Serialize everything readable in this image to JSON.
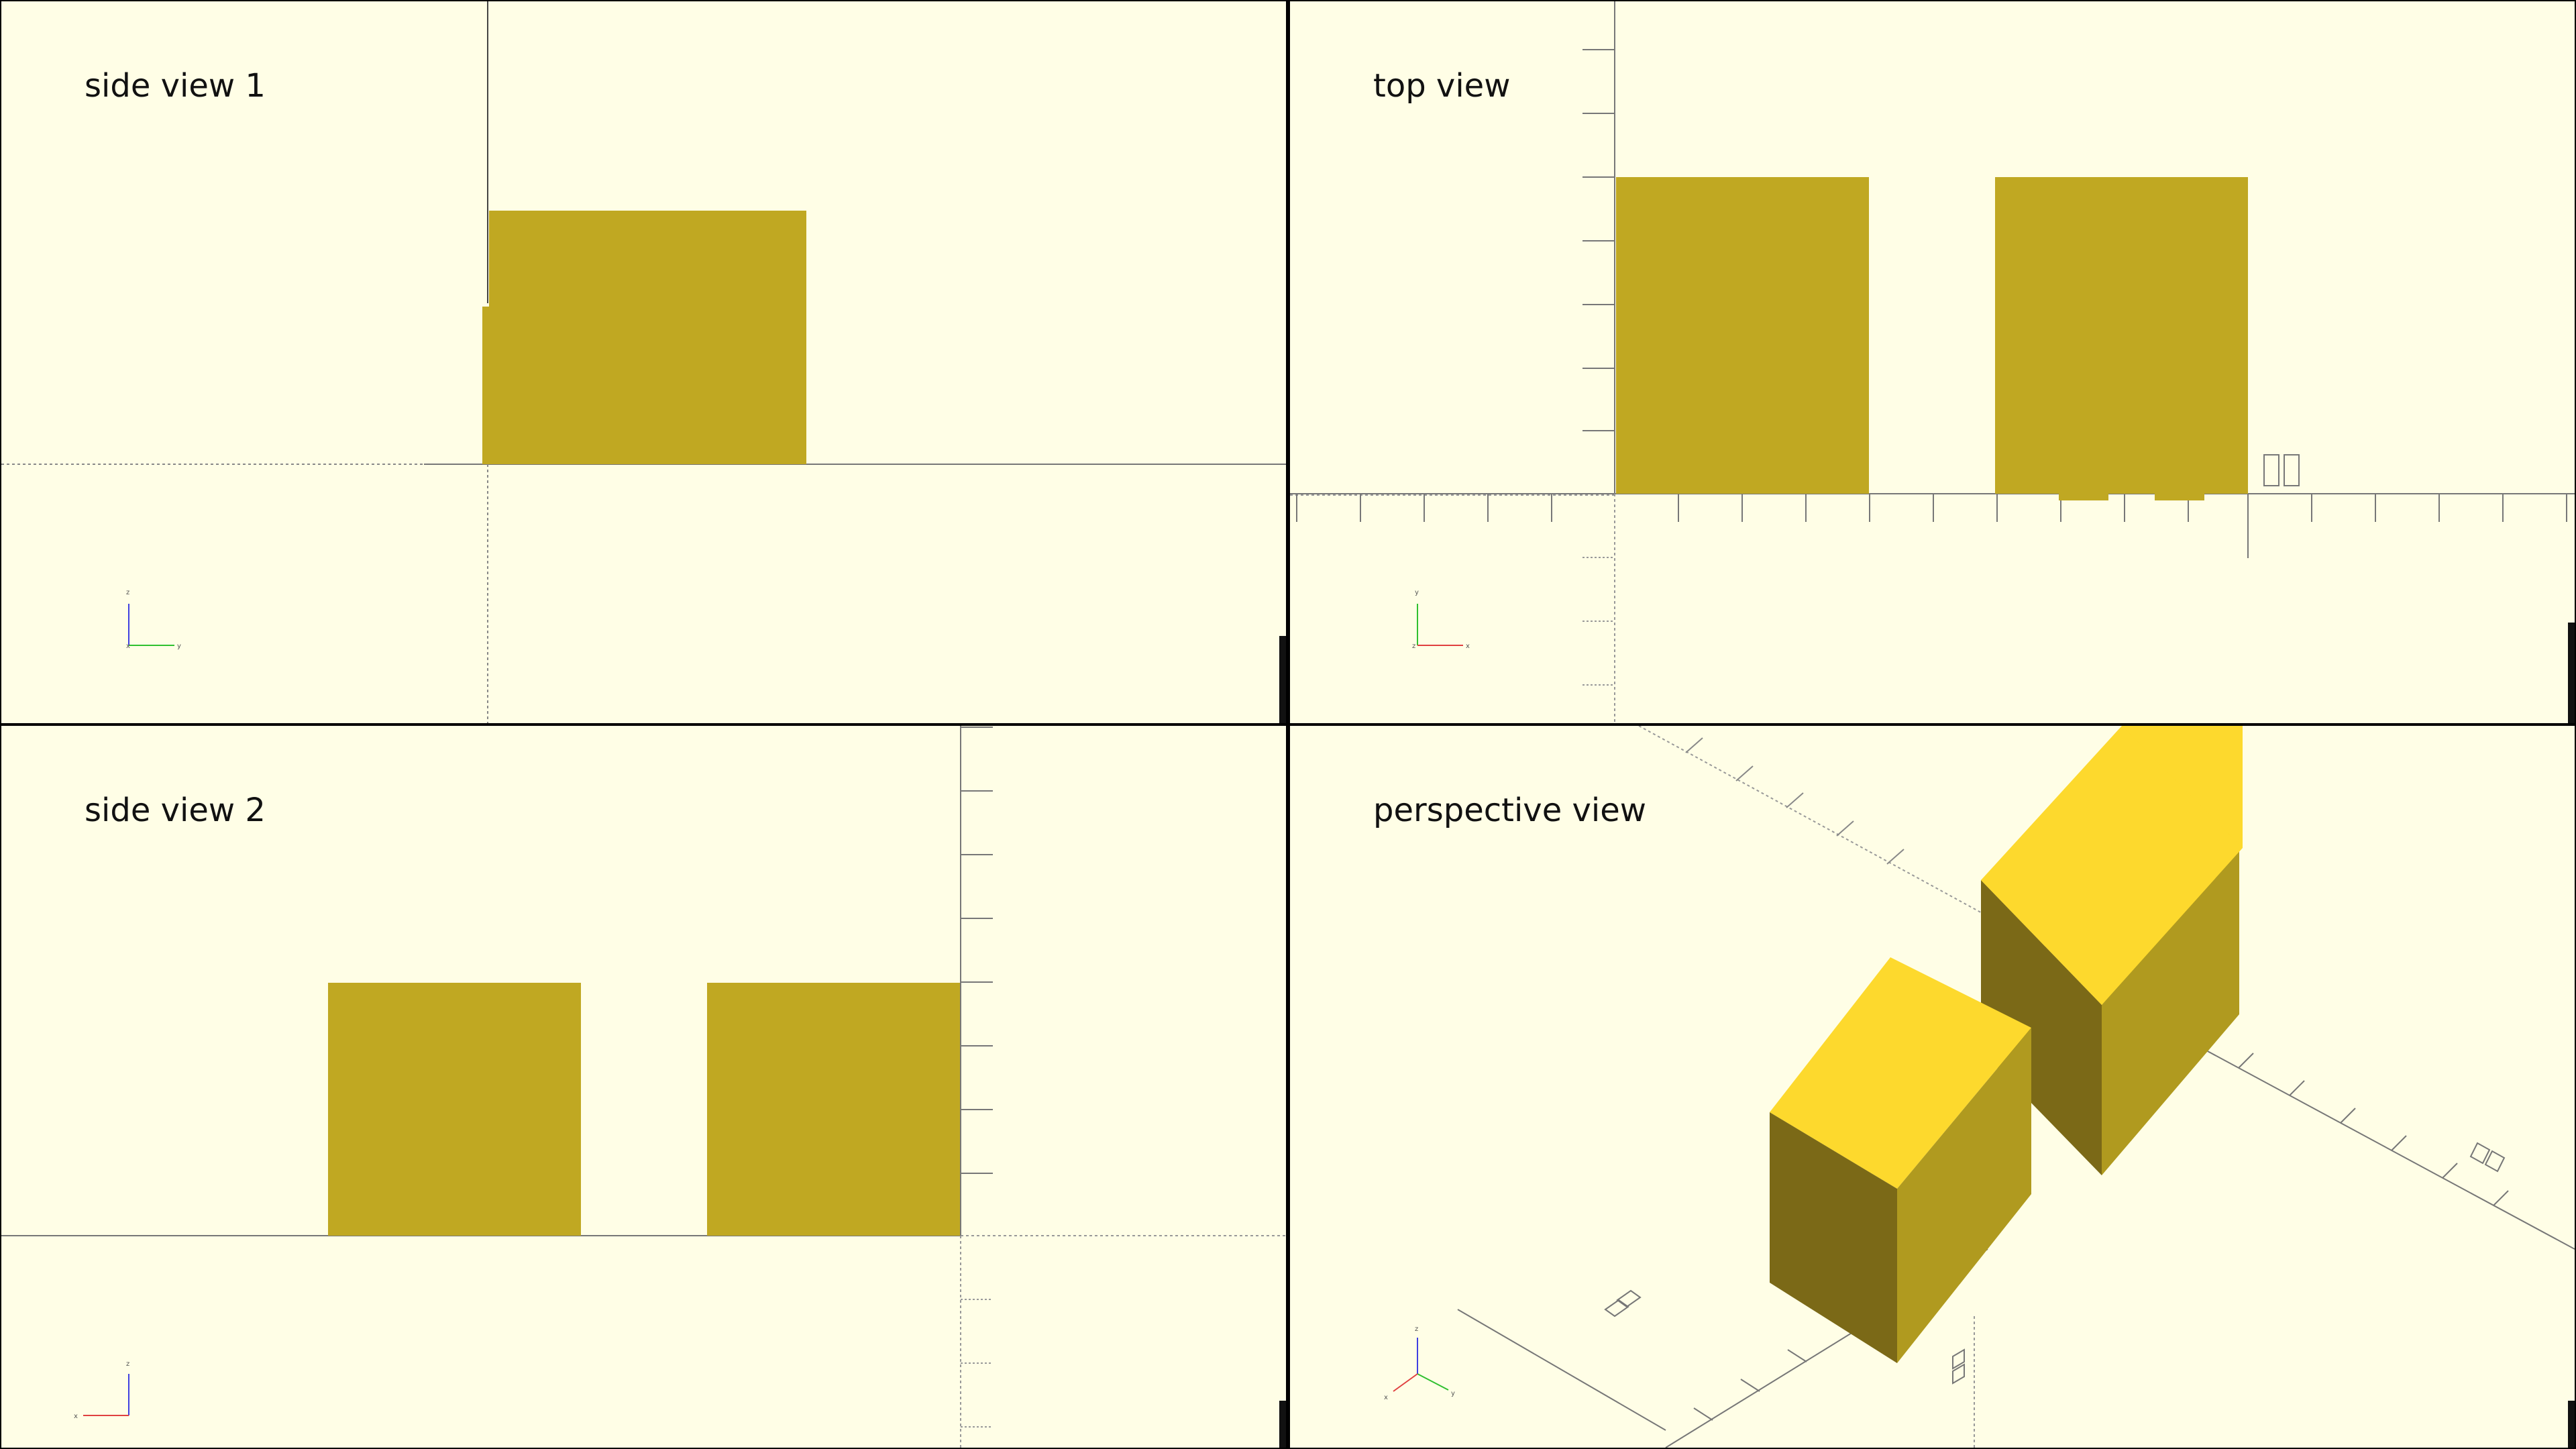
{
  "viewports": [
    {
      "id": "side-view-1",
      "label": "side view 1"
    },
    {
      "id": "top-view",
      "label": "top view"
    },
    {
      "id": "side-view-2",
      "label": "side view 2"
    },
    {
      "id": "perspective-view",
      "label": "perspective view"
    }
  ],
  "axis_indicator": {
    "x_label": "x",
    "y_label": "y",
    "z_label": "z",
    "x_color": "#e04040",
    "y_color": "#30c030",
    "z_color": "#4040e0"
  },
  "colors": {
    "background": "#fffee6",
    "object_flat": "#c0a822",
    "object_top": "#fdd92d",
    "object_dark": "#7b6917",
    "object_side": "#b09a1f",
    "axis_line": "#777777"
  }
}
